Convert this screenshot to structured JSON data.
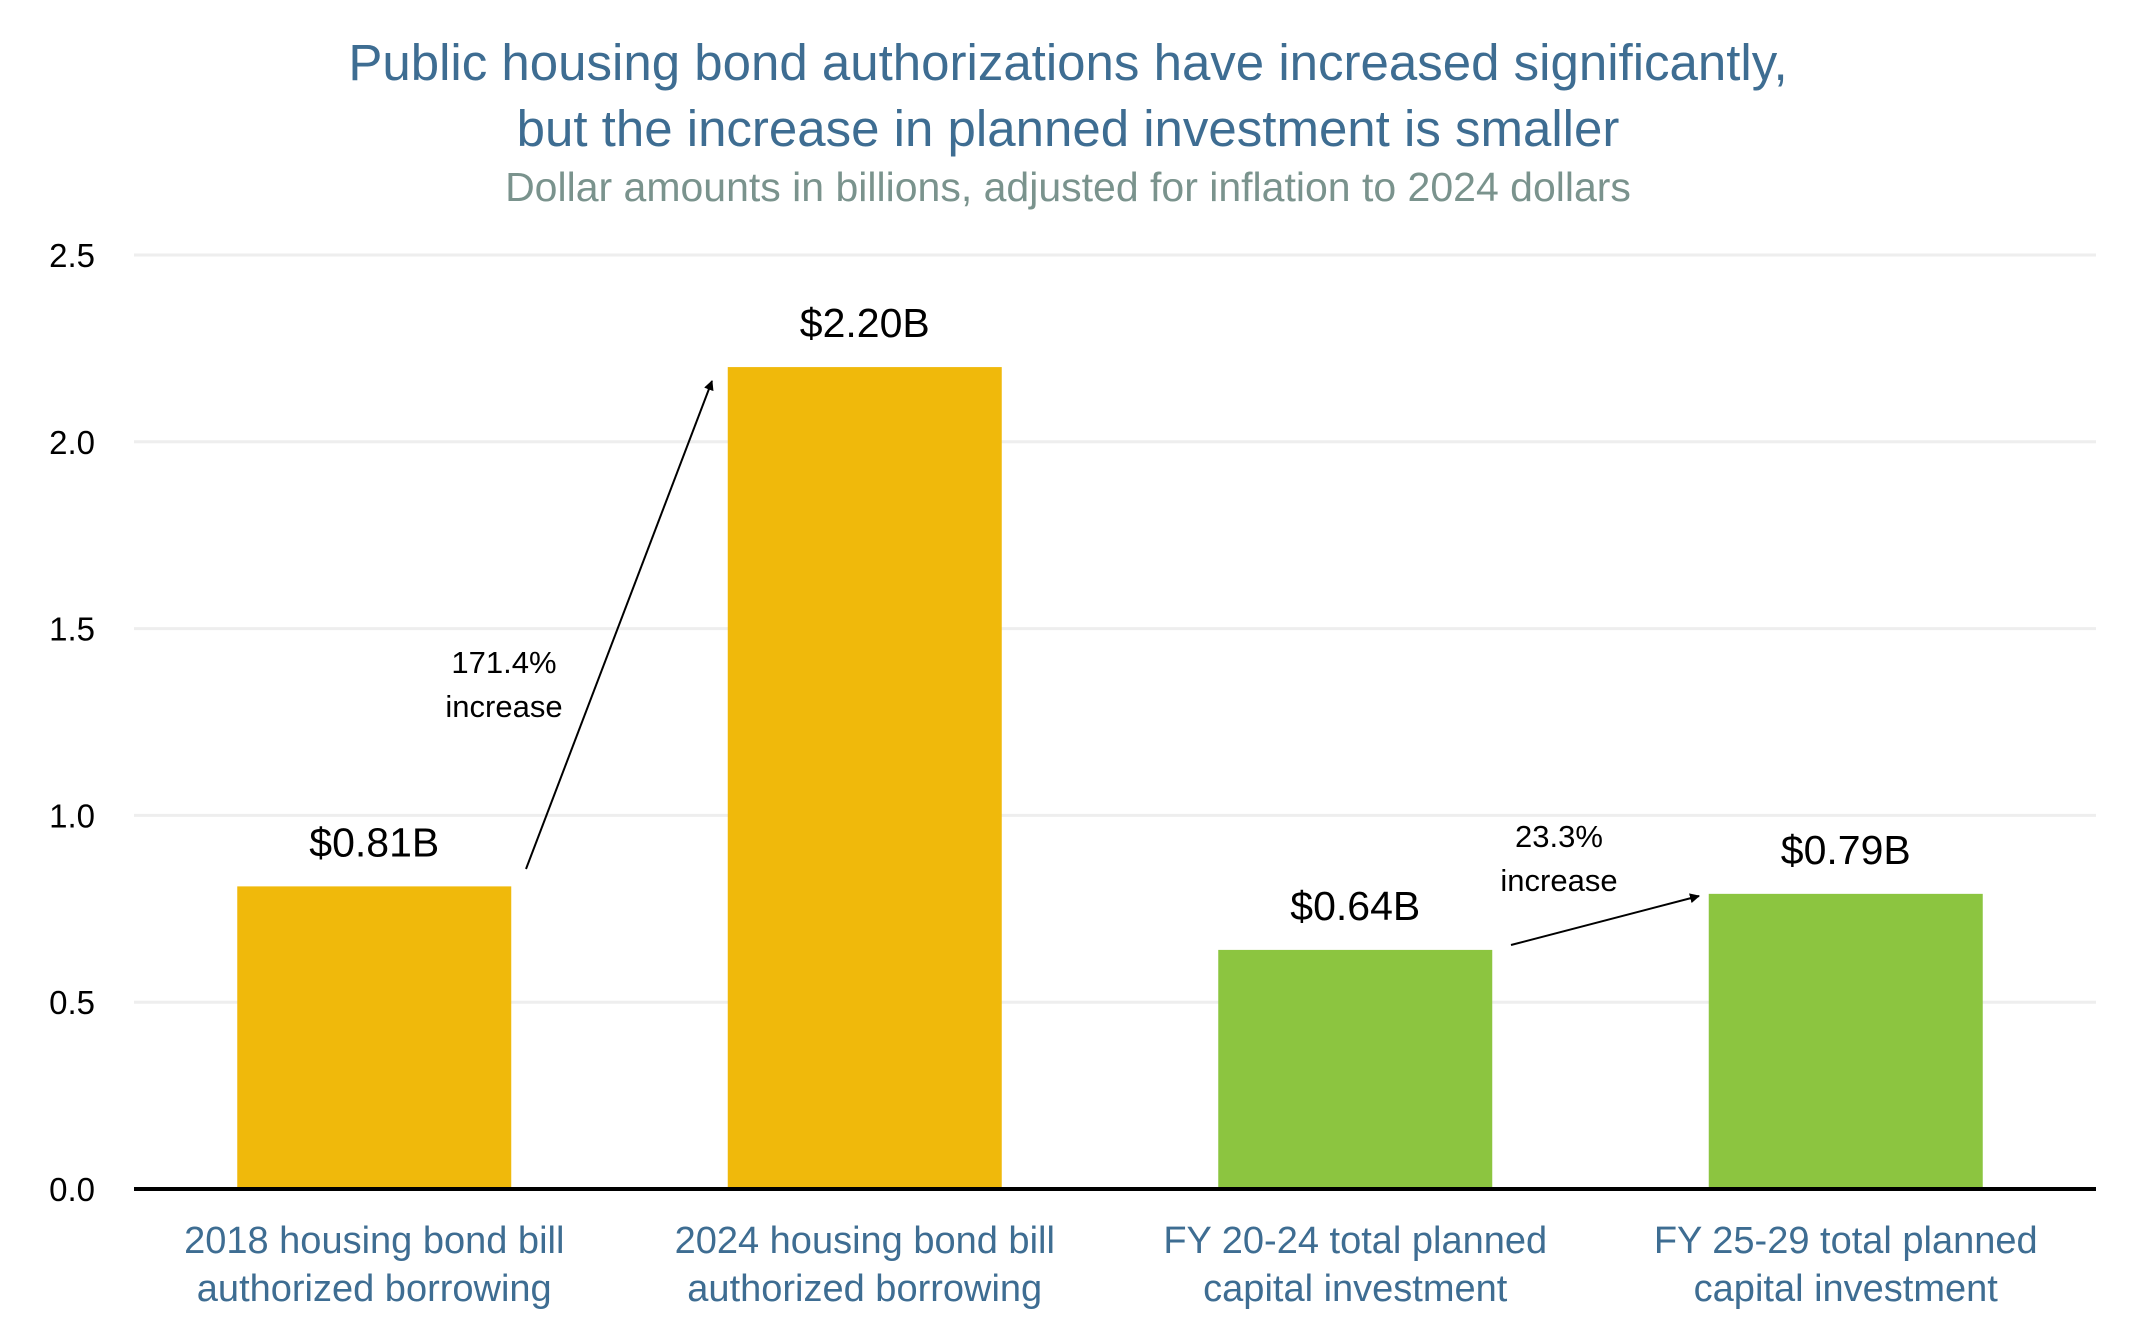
{
  "chart_data": {
    "type": "bar",
    "title": [
      "Public housing bond authorizations have increased significantly,",
      "but the increase in planned investment is smaller"
    ],
    "subtitle": "Dollar amounts in billions, adjusted for inflation to 2024 dollars",
    "categories": [
      [
        "2018 housing bond bill",
        "authorized borrowing"
      ],
      [
        "2024 housing bond bill",
        "authorized borrowing"
      ],
      [
        "FY 20-24 total planned",
        "capital investment"
      ],
      [
        "FY 25-29 total planned",
        "capital investment"
      ]
    ],
    "values": [
      0.81,
      2.2,
      0.64,
      0.79
    ],
    "data_labels": [
      "$0.81B",
      "$2.20B",
      "$0.64B",
      "$0.79B"
    ],
    "bar_colors": [
      "#f0b90b",
      "#f0b90b",
      "#8cc540",
      "#8cc540"
    ],
    "ylim": [
      0,
      2.5
    ],
    "yticks": [
      "0.0",
      "0.5",
      "1.0",
      "1.5",
      "2.0",
      "2.5"
    ],
    "grid": true,
    "xlabel": "",
    "ylabel": "",
    "annotations": [
      {
        "lines": [
          "171.4%",
          "increase"
        ],
        "from_category": 0,
        "to_category": 1
      },
      {
        "lines": [
          "23.3%",
          "increase"
        ],
        "from_category": 2,
        "to_category": 3
      }
    ],
    "colors": {
      "title": "#3e6d92",
      "subtitle": "#7a938d",
      "category_label": "#3e6d92",
      "grid": "#eeeeee",
      "axis": "#000000"
    }
  }
}
